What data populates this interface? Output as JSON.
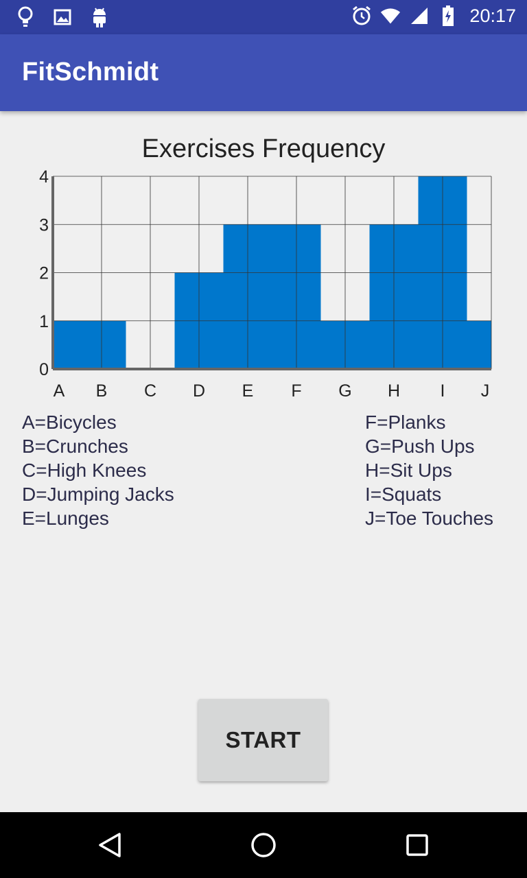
{
  "status_bar": {
    "time": "20:17",
    "left_icons": [
      "lightbulb-icon",
      "image-icon",
      "android-icon"
    ],
    "right_icons": [
      "alarm-icon",
      "wifi-icon",
      "signal-icon",
      "battery-charging-icon"
    ]
  },
  "app_bar": {
    "title": "FitSchmidt"
  },
  "chart_data": {
    "type": "bar",
    "title": "Exercises Frequency",
    "categories": [
      "A",
      "B",
      "C",
      "D",
      "E",
      "F",
      "G",
      "H",
      "I",
      "J"
    ],
    "values": [
      1,
      1,
      0,
      2,
      3,
      3,
      1,
      3,
      4,
      1
    ],
    "y_ticks": [
      "0",
      "1",
      "2",
      "3",
      "4"
    ],
    "ylim": [
      0,
      4
    ],
    "grid": true,
    "bar_color": "#0077cc"
  },
  "legend": {
    "left": [
      "A=Bicycles",
      "B=Crunches",
      "C=High Knees",
      "D=Jumping Jacks",
      "E=Lunges"
    ],
    "right": [
      "F=Planks",
      "G=Push Ups",
      "H=Sit Ups",
      "I=Squats",
      "J=Toe Touches"
    ]
  },
  "actions": {
    "start_label": "START"
  },
  "nav_bar": {
    "icons": [
      "back-icon",
      "home-icon",
      "recents-icon"
    ]
  },
  "colors": {
    "status_bar": "#303f9f",
    "app_bar": "#3f51b5",
    "background": "#efefef"
  }
}
